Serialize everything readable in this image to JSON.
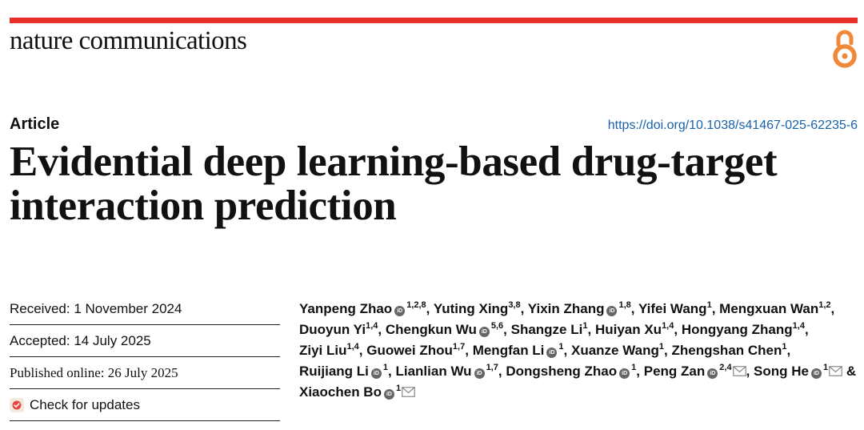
{
  "journal": {
    "name": "nature communications"
  },
  "header": {
    "article_type": "Article",
    "doi": "https://doi.org/10.1038/s41467-025-62235-6"
  },
  "title_lines": [
    "Evidential deep learning-based drug-target",
    "interaction prediction"
  ],
  "dates": {
    "received": "Received: 1 November 2024",
    "accepted": "Accepted: 14 July 2025",
    "published": "Published online: 26 July 2025",
    "check_updates": "Check for updates"
  },
  "authors": [
    {
      "name": "Yanpeng Zhao",
      "orcid": true,
      "aff": "1,2,8",
      "sep": ","
    },
    {
      "name": "Yuting Xing",
      "orcid": false,
      "aff": "3,8",
      "sep": ","
    },
    {
      "name": "Yixin Zhang",
      "orcid": true,
      "aff": "1,8",
      "sep": ","
    },
    {
      "name": "Yifei Wang",
      "orcid": false,
      "aff": "1",
      "sep": ","
    },
    {
      "name": "Mengxuan Wan",
      "orcid": false,
      "aff": "1,2",
      "sep": ","
    },
    {
      "name": "Duoyun Yi",
      "orcid": false,
      "aff": "1,4",
      "sep": ","
    },
    {
      "name": "Chengkun Wu",
      "orcid": true,
      "aff": "5,6",
      "sep": ","
    },
    {
      "name": "Shangze Li",
      "orcid": false,
      "aff": "1",
      "sep": ","
    },
    {
      "name": "Huiyan Xu",
      "orcid": false,
      "aff": "1,4",
      "sep": ","
    },
    {
      "name": "Hongyang Zhang",
      "orcid": false,
      "aff": "1,4",
      "sep": ","
    },
    {
      "name": "Ziyi Liu",
      "orcid": false,
      "aff": "1,4",
      "sep": ","
    },
    {
      "name": "Guowei Zhou",
      "orcid": false,
      "aff": "1,7",
      "sep": ","
    },
    {
      "name": "Mengfan Li",
      "orcid": true,
      "aff": "1",
      "sep": ","
    },
    {
      "name": "Xuanze Wang",
      "orcid": false,
      "aff": "1",
      "sep": ","
    },
    {
      "name": "Zhengshan Chen",
      "orcid": false,
      "aff": "1",
      "sep": ","
    },
    {
      "name": "Ruijiang Li",
      "orcid": true,
      "aff": "1",
      "sep": ","
    },
    {
      "name": "Lianlian Wu",
      "orcid": true,
      "aff": "1,7",
      "sep": ","
    },
    {
      "name": "Dongsheng Zhao",
      "orcid": true,
      "aff": "1",
      "sep": ","
    },
    {
      "name": "Peng Zan",
      "orcid": true,
      "aff": "2,4",
      "mail": true,
      "sep": ","
    },
    {
      "name": "Song He",
      "orcid": true,
      "aff": "1",
      "mail": true,
      "sep": " &"
    },
    {
      "name": "Xiaochen Bo",
      "orcid": true,
      "aff": "1",
      "mail": true,
      "sep": ""
    }
  ],
  "icons": {
    "open_access": "open-access-lock-icon",
    "orcid": "orcid-icon",
    "mail": "mail-icon",
    "check_updates": "check-updates-icon"
  },
  "colors": {
    "accent_bar": "#e8302a",
    "open_access": "#f0883a",
    "link": "#1a62a8"
  }
}
